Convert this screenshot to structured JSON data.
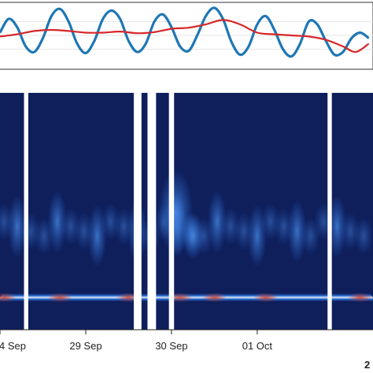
{
  "chart_data": [
    {
      "type": "line",
      "title": "",
      "xlabel": "",
      "ylabel": "",
      "grid": true,
      "x_range_days": [
        0,
        4.35
      ],
      "ylim": [
        0,
        1
      ],
      "series": [
        {
          "name": "",
          "color": "#1f77b4",
          "x": [
            0.0,
            0.1,
            0.2,
            0.3,
            0.4,
            0.5,
            0.6,
            0.7,
            0.8,
            0.9,
            1.0,
            1.1,
            1.2,
            1.3,
            1.4,
            1.5,
            1.6,
            1.7,
            1.8,
            1.9,
            2.0,
            2.1,
            2.2,
            2.3,
            2.4,
            2.5,
            2.6,
            2.7,
            2.8,
            2.9,
            3.0,
            3.1,
            3.2,
            3.3,
            3.4,
            3.5,
            3.6,
            3.7,
            3.8,
            3.9,
            4.0,
            4.1,
            4.2,
            4.3
          ],
          "y": [
            0.55,
            0.8,
            0.65,
            0.3,
            0.2,
            0.45,
            0.85,
            0.98,
            0.75,
            0.35,
            0.18,
            0.4,
            0.8,
            0.95,
            0.8,
            0.4,
            0.2,
            0.35,
            0.75,
            0.88,
            0.65,
            0.3,
            0.22,
            0.5,
            0.85,
            1.0,
            0.8,
            0.38,
            0.15,
            0.3,
            0.7,
            0.85,
            0.6,
            0.25,
            0.12,
            0.35,
            0.75,
            0.7,
            0.4,
            0.15,
            0.2,
            0.45,
            0.55,
            0.45
          ]
        },
        {
          "name": "",
          "color": "#d62728",
          "x": [
            0.0,
            0.2,
            0.4,
            0.6,
            0.8,
            1.0,
            1.2,
            1.4,
            1.6,
            1.8,
            2.0,
            2.2,
            2.4,
            2.6,
            2.8,
            3.0,
            3.2,
            3.4,
            3.6,
            3.8,
            4.0,
            4.15,
            4.3
          ],
          "y": [
            0.48,
            0.52,
            0.58,
            0.6,
            0.58,
            0.55,
            0.55,
            0.57,
            0.54,
            0.56,
            0.62,
            0.64,
            0.7,
            0.78,
            0.7,
            0.55,
            0.52,
            0.5,
            0.48,
            0.42,
            0.3,
            0.2,
            0.35
          ]
        }
      ]
    },
    {
      "type": "heatmap",
      "title": "",
      "xlabel": "",
      "ylabel": "",
      "colormap": [
        "#0f1f5c",
        "#2b6fd6",
        "#e8eef5",
        "#c0392b"
      ],
      "x_tick_labels": [
        "4 Sep",
        "29 Sep",
        "30 Sep",
        "01 Oct"
      ],
      "corner_label": "2",
      "data_gaps_days": [
        [
          0.28,
          0.33
        ],
        [
          1.56,
          1.65
        ],
        [
          1.72,
          1.82
        ],
        [
          1.97,
          2.03
        ],
        [
          3.82,
          3.87
        ]
      ]
    }
  ]
}
